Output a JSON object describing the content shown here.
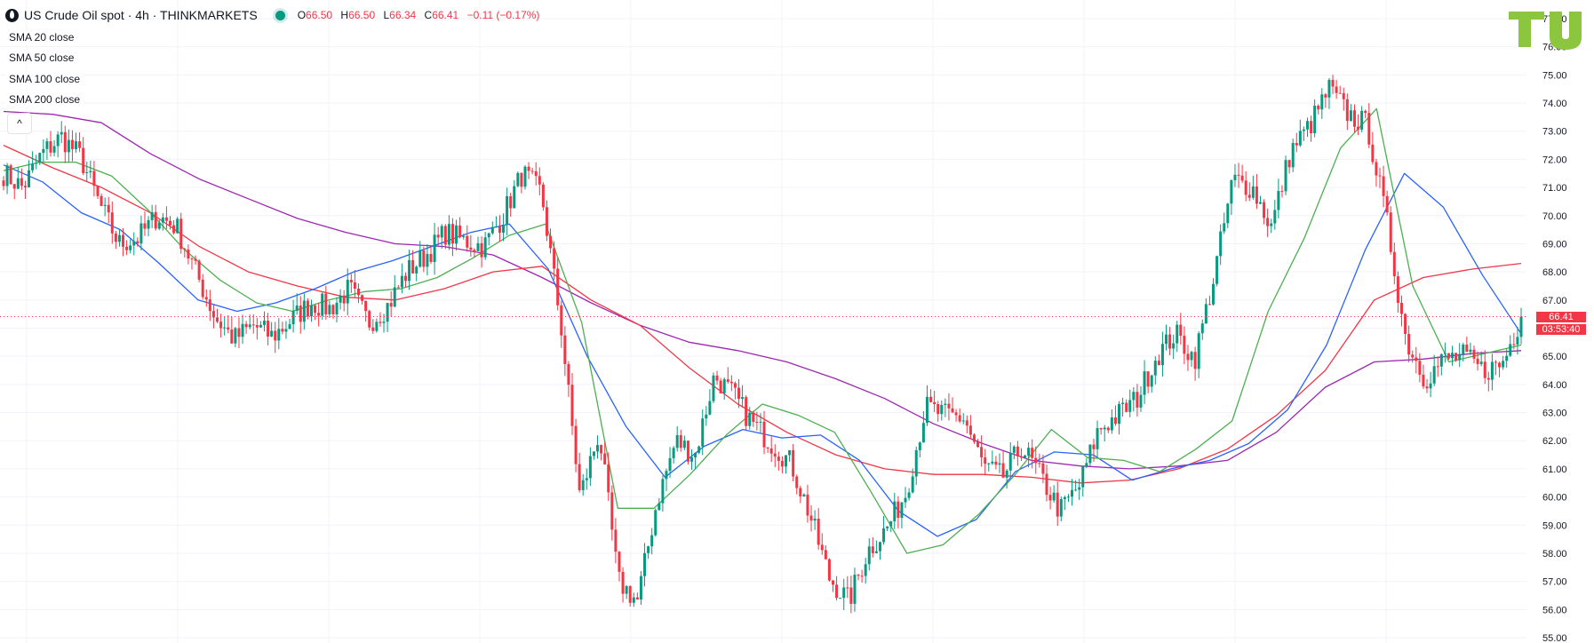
{
  "header": {
    "symbol": "US Crude Oil spot · 4h · THINKMARKETS",
    "open_label": "O",
    "open": "66.50",
    "high_label": "H",
    "high": "66.50",
    "low_label": "L",
    "low": "66.34",
    "close_label": "C",
    "close": "66.41",
    "change": "−0.11 (−0.17%)"
  },
  "indicators": [
    "SMA 20 close",
    "SMA 50 close",
    "SMA 100 close",
    "SMA 200 close"
  ],
  "collapse_label": "^",
  "price_tag": {
    "price": "66.41",
    "countdown": "03:53:40"
  },
  "colors": {
    "up": "#089981",
    "down": "#f23645",
    "sma20": "#4caf50",
    "sma50": "#2962ff",
    "sma100": "#f23645",
    "sma200": "#9c27b0",
    "grid": "#f0f3fa"
  },
  "chart_data": {
    "type": "line",
    "title": "US Crude Oil spot · 4h · THINKMARKETS",
    "ylim": [
      55,
      77
    ],
    "y_ticks": [
      "55.00",
      "56.00",
      "57.00",
      "58.00",
      "59.00",
      "60.00",
      "61.00",
      "62.00",
      "63.00",
      "64.00",
      "65.00",
      "66.00",
      "67.00",
      "68.00",
      "69.00",
      "70.00",
      "71.00",
      "72.00",
      "73.00",
      "74.00",
      "75.00",
      "76.00",
      "77.00"
    ],
    "grid": true,
    "last_price": 66.41,
    "price_anchors": [
      71.5,
      71.0,
      72.2,
      72.8,
      72.1,
      70.4,
      69.0,
      69.2,
      70.0,
      69.6,
      68.0,
      66.4,
      65.6,
      66.1,
      65.7,
      66.3,
      66.9,
      66.7,
      67.4,
      66.2,
      66.8,
      68.0,
      68.6,
      69.4,
      69.1,
      68.9,
      70.0,
      71.5,
      70.8,
      66.2,
      60.0,
      62.3,
      57.0,
      56.3,
      59.8,
      62.0,
      61.5,
      64.3,
      63.6,
      62.6,
      61.9,
      61.2,
      59.3,
      57.1,
      56.3,
      58.1,
      58.9,
      60.2,
      63.2,
      62.9,
      62.8,
      61.1,
      60.7,
      61.8,
      60.7,
      59.5,
      60.4,
      62.4,
      62.9,
      63.5,
      65.0,
      65.8,
      64.9,
      67.8,
      71.3,
      71.0,
      69.6,
      72.3,
      73.2,
      74.5,
      73.6,
      73.2,
      69.8,
      65.6,
      64.2,
      64.9,
      65.0,
      64.5,
      64.7,
      66.4
    ],
    "sma_anchors": {
      "sma20": [
        71.6,
        71.9,
        71.9,
        71.4,
        70.2,
        68.8,
        67.7,
        66.9,
        66.6,
        67.0,
        67.3,
        67.4,
        67.8,
        68.5,
        69.3,
        69.7,
        66.2,
        59.6,
        59.6,
        60.8,
        62.2,
        63.3,
        62.9,
        62.3,
        60.2,
        58.0,
        58.3,
        59.4,
        60.8,
        62.4,
        61.4,
        61.3,
        60.9,
        61.7,
        62.7,
        66.6,
        69.2,
        72.4,
        73.8,
        67.5,
        64.8,
        65.1,
        65.4
      ],
      "sma50": [
        71.8,
        71.2,
        70.1,
        69.5,
        68.3,
        67.0,
        66.6,
        66.9,
        67.4,
        68.0,
        68.4,
        68.9,
        69.4,
        69.7,
        68.1,
        65.0,
        62.5,
        60.7,
        61.8,
        62.4,
        62.1,
        62.2,
        61.3,
        59.5,
        58.6,
        59.2,
        60.9,
        61.6,
        61.5,
        60.6,
        61.0,
        61.3,
        61.9,
        63.1,
        65.4,
        68.8,
        71.5,
        70.3,
        67.9,
        65.8
      ],
      "sma100": [
        72.5,
        71.7,
        71.0,
        70.1,
        68.9,
        68.0,
        67.5,
        67.1,
        67.0,
        67.4,
        68.0,
        68.2,
        67.0,
        66.1,
        64.6,
        63.3,
        62.3,
        61.5,
        61.0,
        60.8,
        60.8,
        60.7,
        60.5,
        60.6,
        61.0,
        61.7,
        62.9,
        64.5,
        67.0,
        67.8,
        68.1,
        68.3
      ],
      "sma200": [
        73.7,
        73.6,
        73.3,
        72.2,
        71.3,
        70.6,
        69.9,
        69.4,
        69.0,
        68.9,
        68.6,
        67.8,
        66.9,
        66.1,
        65.5,
        65.2,
        64.8,
        64.2,
        63.5,
        62.6,
        61.9,
        61.3,
        61.1,
        61.0,
        61.1,
        61.3,
        62.3,
        63.9,
        64.8,
        64.9,
        65.1,
        65.2
      ]
    }
  }
}
